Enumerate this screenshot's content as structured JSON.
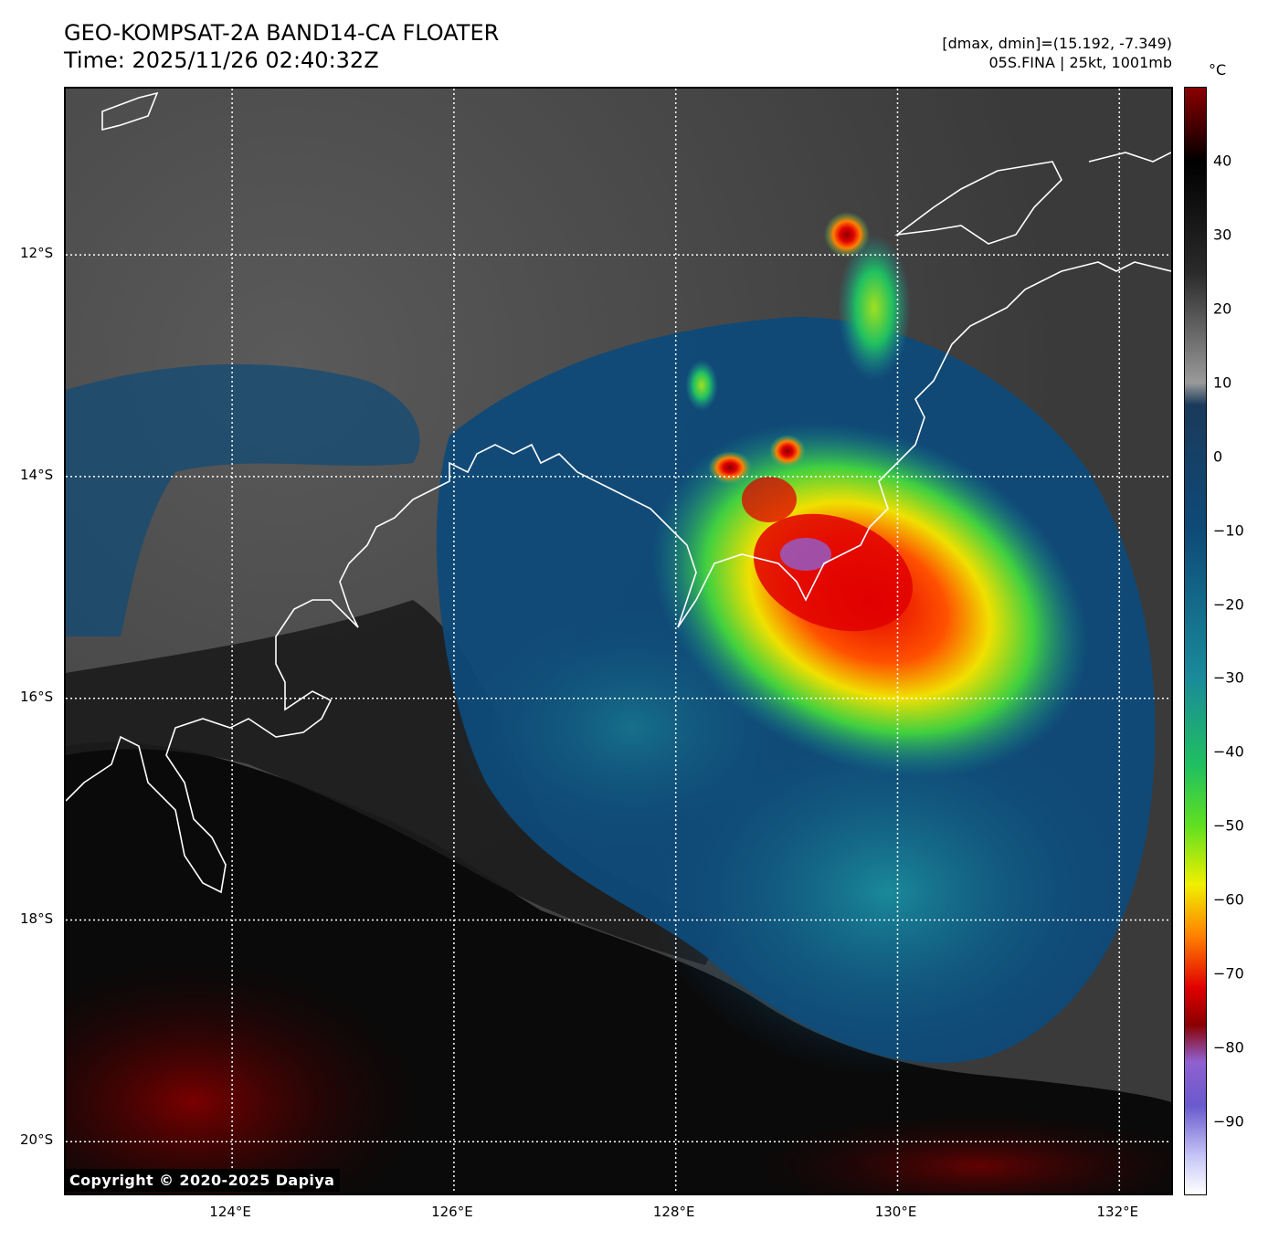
{
  "header": {
    "title_line1": "GEO-KOMPSAT-2A BAND14-CA FLOATER",
    "title_line2": "Time: 2025/11/26 02:40:32Z",
    "info_line1": "[dmax, dmin]=(15.192, -7.349)",
    "info_line2": "05S.FINA | 25kt, 1001mb"
  },
  "map": {
    "lon_range": [
      122.5,
      132.5
    ],
    "lat_range": [
      -20.5,
      -10.5
    ],
    "lat_ticks": [
      {
        "value": -12,
        "label": "12°S"
      },
      {
        "value": -14,
        "label": "14°S"
      },
      {
        "value": -16,
        "label": "16°S"
      },
      {
        "value": -18,
        "label": "18°S"
      },
      {
        "value": -20,
        "label": "20°S"
      }
    ],
    "lon_ticks": [
      {
        "value": 124,
        "label": "124°E"
      },
      {
        "value": 126,
        "label": "126°E"
      },
      {
        "value": 128,
        "label": "128°E"
      },
      {
        "value": 130,
        "label": "130°E"
      },
      {
        "value": 132,
        "label": "132°E"
      }
    ],
    "storm_center": {
      "lon": 129.5,
      "lat": -14.8
    }
  },
  "colorbar": {
    "unit": "°C",
    "range": [
      -100,
      50
    ],
    "ticks": [
      40,
      30,
      20,
      10,
      0,
      -10,
      -20,
      -30,
      -40,
      -50,
      -60,
      -70,
      -80,
      -90
    ],
    "stops": [
      {
        "value": 50,
        "color": "#8a0000"
      },
      {
        "value": 44,
        "color": "#3a0000"
      },
      {
        "value": 40,
        "color": "#000000"
      },
      {
        "value": 25,
        "color": "#2a2a2a"
      },
      {
        "value": 10,
        "color": "#9a9a9a"
      },
      {
        "value": 7,
        "color": "#1a3a5a"
      },
      {
        "value": -10,
        "color": "#0e4a78"
      },
      {
        "value": -30,
        "color": "#1a8a9a"
      },
      {
        "value": -42,
        "color": "#20c060"
      },
      {
        "value": -50,
        "color": "#60e020"
      },
      {
        "value": -58,
        "color": "#f0f000"
      },
      {
        "value": -65,
        "color": "#ff8000"
      },
      {
        "value": -72,
        "color": "#e00000"
      },
      {
        "value": -77,
        "color": "#8a0000"
      },
      {
        "value": -82,
        "color": "#9060d0"
      },
      {
        "value": -88,
        "color": "#6a5acd"
      },
      {
        "value": -95,
        "color": "#c8c8f8"
      },
      {
        "value": -100,
        "color": "#ffffff"
      }
    ]
  },
  "copyright": "Copyright © 2020-2025 Dapiya"
}
